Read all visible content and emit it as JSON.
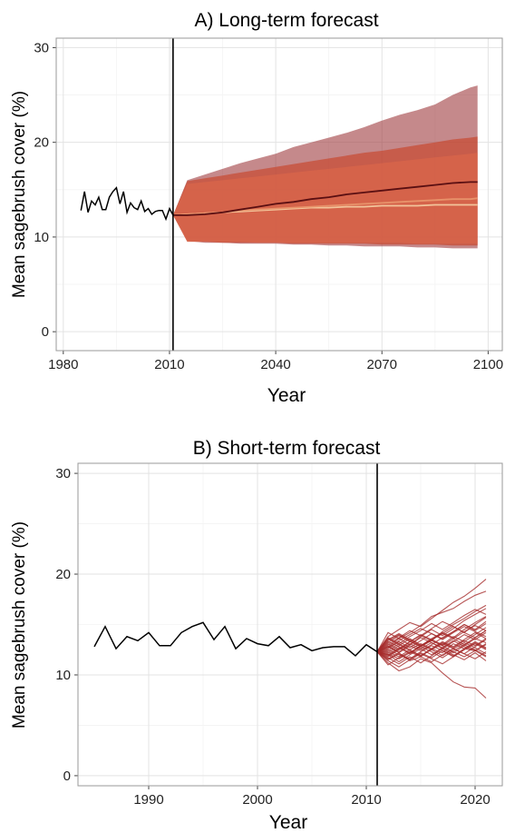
{
  "chart_data": [
    {
      "type": "area",
      "title": "A) Long-term forecast",
      "xlabel": "Year",
      "ylabel": "Mean sagebrush cover (%)",
      "xlim": [
        1978,
        2104
      ],
      "ylim": [
        -2,
        31
      ],
      "xticks": [
        1980,
        2010,
        2040,
        2070,
        2100
      ],
      "yticks": [
        0,
        10,
        20,
        30
      ],
      "grid": true,
      "legend": "none",
      "forecast_start": 2011,
      "colors": {
        "observed": "#000000",
        "band1": "#9e3b3e",
        "band2": "#c84830",
        "band3": "#e06a4a",
        "line1": "#5a0f12",
        "line2": "#e8926a",
        "line3": "#f2c49a"
      },
      "observed": {
        "x": [
          1985,
          1986,
          1987,
          1988,
          1989,
          1990,
          1991,
          1992,
          1993,
          1994,
          1995,
          1996,
          1997,
          1998,
          1999,
          2000,
          2001,
          2002,
          2003,
          2004,
          2005,
          2006,
          2007,
          2008,
          2009,
          2010,
          2011
        ],
        "y": [
          12.8,
          14.8,
          12.6,
          13.8,
          13.4,
          14.2,
          12.9,
          12.9,
          14.2,
          14.8,
          15.2,
          13.5,
          14.8,
          12.6,
          13.6,
          13.1,
          12.9,
          13.8,
          12.7,
          13.0,
          12.4,
          12.7,
          12.8,
          12.8,
          11.9,
          13.0,
          12.3
        ]
      },
      "forecast_x": [
        2011,
        2015,
        2020,
        2025,
        2030,
        2035,
        2040,
        2045,
        2050,
        2055,
        2060,
        2065,
        2070,
        2075,
        2080,
        2085,
        2090,
        2095,
        2097
      ],
      "series": [
        {
          "upper": [
            12.3,
            16.0,
            16.6,
            17.2,
            17.8,
            18.3,
            18.8,
            19.5,
            20.0,
            20.5,
            21.0,
            21.6,
            22.3,
            22.9,
            23.4,
            24.0,
            25.0,
            25.8,
            26.0
          ],
          "lower": [
            12.3,
            9.6,
            9.4,
            9.4,
            9.3,
            9.3,
            9.3,
            9.2,
            9.2,
            9.1,
            9.1,
            9.0,
            9.0,
            9.0,
            8.9,
            8.9,
            8.8,
            8.8,
            8.8
          ],
          "mean": [
            12.3,
            12.3,
            12.4,
            12.6,
            12.9,
            13.2,
            13.5,
            13.7,
            14.0,
            14.2,
            14.5,
            14.7,
            14.9,
            15.1,
            15.3,
            15.5,
            15.7,
            15.8,
            15.8
          ]
        },
        {
          "upper": [
            12.3,
            15.9,
            16.2,
            16.5,
            16.8,
            17.1,
            17.4,
            17.7,
            18.0,
            18.3,
            18.6,
            18.9,
            19.1,
            19.4,
            19.7,
            20.0,
            20.3,
            20.5,
            20.6
          ],
          "lower": [
            12.3,
            9.5,
            9.5,
            9.4,
            9.4,
            9.4,
            9.4,
            9.3,
            9.3,
            9.3,
            9.3,
            9.3,
            9.2,
            9.2,
            9.2,
            9.2,
            9.1,
            9.1,
            9.1
          ],
          "mean": [
            12.3,
            12.4,
            12.5,
            12.6,
            12.8,
            12.9,
            13.0,
            13.1,
            13.2,
            13.3,
            13.4,
            13.5,
            13.6,
            13.7,
            13.8,
            13.9,
            14.0,
            14.0,
            14.1
          ]
        },
        {
          "upper": [
            12.3,
            15.6,
            15.8,
            16.0,
            16.2,
            16.4,
            16.6,
            16.8,
            17.0,
            17.2,
            17.4,
            17.6,
            17.8,
            18.0,
            18.2,
            18.4,
            18.6,
            18.8,
            18.9
          ],
          "lower": [
            12.3,
            9.5,
            9.5,
            9.5,
            9.5,
            9.4,
            9.4,
            9.4,
            9.4,
            9.4,
            9.4,
            9.4,
            9.4,
            9.4,
            9.3,
            9.3,
            9.3,
            9.3,
            9.3
          ],
          "mean": [
            12.3,
            12.4,
            12.5,
            12.6,
            12.7,
            12.8,
            12.9,
            13.0,
            13.1,
            13.1,
            13.2,
            13.2,
            13.3,
            13.3,
            13.3,
            13.4,
            13.4,
            13.4,
            13.4
          ]
        }
      ]
    },
    {
      "type": "line",
      "title": "B) Short-term forecast",
      "xlabel": "Year",
      "ylabel": "Mean sagebrush cover (%)",
      "xlim": [
        1983.5,
        2022.5
      ],
      "ylim": [
        -1,
        31
      ],
      "xticks": [
        1990,
        2000,
        2010,
        2020
      ],
      "yticks": [
        0,
        10,
        20,
        30
      ],
      "grid": true,
      "legend": "none",
      "forecast_start": 2011,
      "colors": {
        "observed": "#000000",
        "forecast": "#a52a2a"
      },
      "observed": {
        "x": [
          1985,
          1986,
          1987,
          1988,
          1989,
          1990,
          1991,
          1992,
          1993,
          1994,
          1995,
          1996,
          1997,
          1998,
          1999,
          2000,
          2001,
          2002,
          2003,
          2004,
          2005,
          2006,
          2007,
          2008,
          2009,
          2010,
          2011
        ],
        "y": [
          12.8,
          14.8,
          12.6,
          13.8,
          13.4,
          14.2,
          12.9,
          12.9,
          14.2,
          14.8,
          15.2,
          13.5,
          14.8,
          12.6,
          13.6,
          13.1,
          12.9,
          13.8,
          12.7,
          13.0,
          12.4,
          12.7,
          12.8,
          12.8,
          11.9,
          13.0,
          12.3
        ]
      },
      "forecast_x": [
        2011,
        2012,
        2013,
        2014,
        2015,
        2016,
        2017,
        2018,
        2019,
        2020,
        2021
      ],
      "simulations": [
        [
          12.3,
          13.8,
          14.5,
          15.2,
          14.8,
          15.6,
          16.4,
          17.2,
          17.8,
          18.6,
          19.5
        ],
        [
          12.3,
          11.2,
          10.4,
          10.8,
          11.6,
          11.2,
          10.2,
          9.3,
          8.8,
          8.7,
          7.7
        ],
        [
          12.3,
          12.8,
          13.6,
          14.2,
          14.9,
          15.8,
          16.2,
          16.6,
          17.3,
          17.9,
          18.3
        ],
        [
          12.3,
          11.6,
          12.2,
          11.4,
          11.8,
          12.6,
          12.2,
          13.1,
          12.6,
          12.4,
          11.8
        ],
        [
          12.3,
          13.1,
          12.5,
          13.3,
          13.9,
          13.4,
          14.3,
          15.0,
          15.6,
          16.3,
          16.9
        ],
        [
          12.3,
          12.0,
          11.3,
          12.0,
          12.6,
          13.2,
          12.7,
          12.2,
          12.9,
          13.6,
          13.2
        ],
        [
          12.3,
          13.5,
          14.1,
          13.5,
          12.9,
          13.6,
          14.2,
          13.7,
          14.5,
          15.2,
          15.8
        ],
        [
          12.3,
          11.8,
          12.5,
          13.1,
          12.6,
          12.0,
          12.7,
          13.4,
          12.8,
          12.4,
          13.1
        ],
        [
          12.3,
          12.6,
          13.3,
          12.7,
          13.4,
          14.1,
          13.6,
          14.3,
          15.0,
          14.5,
          15.3
        ],
        [
          12.3,
          11.4,
          10.8,
          11.5,
          12.2,
          11.7,
          12.4,
          11.9,
          12.6,
          13.3,
          12.7
        ],
        [
          12.3,
          13.3,
          12.8,
          12.2,
          12.9,
          13.5,
          13.0,
          13.8,
          13.3,
          14.0,
          14.7
        ],
        [
          12.3,
          12.2,
          12.9,
          13.6,
          13.0,
          12.5,
          11.9,
          12.6,
          13.2,
          12.7,
          12.1
        ],
        [
          12.3,
          13.0,
          13.7,
          14.4,
          13.9,
          14.6,
          15.3,
          14.8,
          14.2,
          15.0,
          15.7
        ],
        [
          12.3,
          11.7,
          11.1,
          11.8,
          11.2,
          11.9,
          12.6,
          12.0,
          11.5,
          12.2,
          11.4
        ],
        [
          12.3,
          12.9,
          12.3,
          13.0,
          13.7,
          13.2,
          12.6,
          13.3,
          14.0,
          13.5,
          14.2
        ],
        [
          12.3,
          12.4,
          13.1,
          12.5,
          11.9,
          12.6,
          13.3,
          12.8,
          13.5,
          14.2,
          13.6
        ],
        [
          12.3,
          14.2,
          13.6,
          13.0,
          13.8,
          14.5,
          13.9,
          14.6,
          15.4,
          16.0,
          16.6
        ],
        [
          12.3,
          11.0,
          11.7,
          12.3,
          11.8,
          11.3,
          12.0,
          12.6,
          12.1,
          11.6,
          12.3
        ],
        [
          12.3,
          12.7,
          13.4,
          14.0,
          14.6,
          14.1,
          13.5,
          14.2,
          14.8,
          14.3,
          13.8
        ],
        [
          12.3,
          13.6,
          13.0,
          12.4,
          11.9,
          12.5,
          13.1,
          12.6,
          12.1,
          12.8,
          13.5
        ],
        [
          12.3,
          12.1,
          11.6,
          12.2,
          12.9,
          13.5,
          14.1,
          13.6,
          13.0,
          13.7,
          14.4
        ],
        [
          12.3,
          12.5,
          12.0,
          11.5,
          12.1,
          11.6,
          11.1,
          11.8,
          12.5,
          13.1,
          12.5
        ],
        [
          12.3,
          13.2,
          13.9,
          13.3,
          14.0,
          13.5,
          12.9,
          13.6,
          14.3,
          14.9,
          14.4
        ],
        [
          12.3,
          11.9,
          12.6,
          13.3,
          12.8,
          13.4,
          12.9,
          12.3,
          11.8,
          12.4,
          13.0
        ],
        [
          12.3,
          12.8,
          12.2,
          12.9,
          12.4,
          13.0,
          13.7,
          14.3,
          15.0,
          14.4,
          15.1
        ],
        [
          12.3,
          11.5,
          12.1,
          11.6,
          12.3,
          12.9,
          12.4,
          11.8,
          12.5,
          13.2,
          12.6
        ],
        [
          12.3,
          13.4,
          14.0,
          13.4,
          12.8,
          13.5,
          14.1,
          14.8,
          14.2,
          13.7,
          14.4
        ],
        [
          12.3,
          12.0,
          12.7,
          12.1,
          12.8,
          12.3,
          11.7,
          12.4,
          13.0,
          12.5,
          11.9
        ],
        [
          12.3,
          13.7,
          13.1,
          13.8,
          14.4,
          15.1,
          14.5,
          15.2,
          15.9,
          16.5,
          16.0
        ],
        [
          12.3,
          12.3,
          11.8,
          12.5,
          13.1,
          12.6,
          13.2,
          12.7,
          13.4,
          12.9,
          13.6
        ]
      ]
    }
  ]
}
